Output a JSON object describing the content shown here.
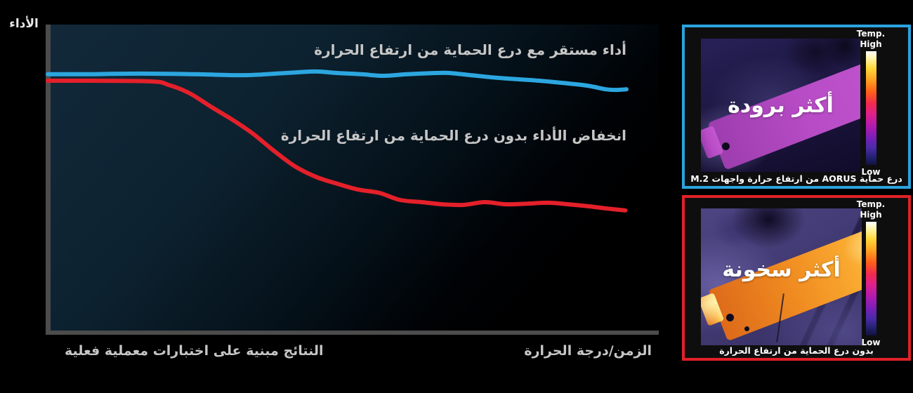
{
  "page": {
    "background": "#000000"
  },
  "chart": {
    "y_axis_label": "الأداء",
    "x_axis_label": "الزمن/درجة الحرارة",
    "footnote": "النتائج مبنية على اختبارات معملية فعلية"
  },
  "chart_data": {
    "type": "line",
    "title": "",
    "xlabel": "الزمن/درجة الحرارة",
    "ylabel": "الأداء",
    "x_range": [
      0,
      100
    ],
    "y_range": [
      0,
      100
    ],
    "grid": false,
    "legend_position": "inline annotations above each line",
    "series": [
      {
        "name": "أداء مستقر مع درع الحماية من ارتفاع الحرارة",
        "color": "#2CA6DF",
        "points": [
          [
            0,
            83.8
          ],
          [
            6.3,
            83.8
          ],
          [
            16,
            84
          ],
          [
            25.7,
            83.8
          ],
          [
            34.2,
            83.5
          ],
          [
            42.7,
            84.4
          ],
          [
            46.4,
            84.7
          ],
          [
            50,
            84.2
          ],
          [
            54.2,
            83.8
          ],
          [
            58,
            83.3
          ],
          [
            62.1,
            83.8
          ],
          [
            67,
            84.2
          ],
          [
            69.4,
            84.2
          ],
          [
            73.1,
            83.5
          ],
          [
            76.7,
            82.8
          ],
          [
            80.9,
            82.2
          ],
          [
            84.9,
            81.7
          ],
          [
            88.8,
            81
          ],
          [
            93.2,
            80.1
          ],
          [
            96.4,
            78.9
          ],
          [
            98.3,
            78.7
          ],
          [
            100,
            78.9
          ]
        ]
      },
      {
        "name": "انخفاض الأداء بدون درع الحماية من ارتفاع الحرارة",
        "color": "#E4202A",
        "points": [
          [
            0,
            81.7
          ],
          [
            17.2,
            81.5
          ],
          [
            20.9,
            80.3
          ],
          [
            24.5,
            77.6
          ],
          [
            28.2,
            73.2
          ],
          [
            31.8,
            69.1
          ],
          [
            35.4,
            64.5
          ],
          [
            39.1,
            58.8
          ],
          [
            42.7,
            53.8
          ],
          [
            46.4,
            50.3
          ],
          [
            50,
            48.1
          ],
          [
            53.6,
            46.2
          ],
          [
            57.3,
            45.1
          ],
          [
            60.9,
            42.8
          ],
          [
            64.6,
            42.1
          ],
          [
            68.2,
            41.4
          ],
          [
            71.8,
            41.2
          ],
          [
            75.5,
            42.1
          ],
          [
            79.1,
            41.4
          ],
          [
            82.8,
            41.6
          ],
          [
            86.4,
            41.9
          ],
          [
            90,
            41.4
          ],
          [
            93.7,
            40.7
          ],
          [
            96.7,
            40
          ],
          [
            99.8,
            39.4
          ]
        ]
      }
    ]
  },
  "panels": {
    "cooler": {
      "border_color": "#2AA4DD",
      "overlay_label": "أكثر برودة",
      "caption": "درع حماية AORUS  من ارتفاع حرارة واجهات M.2",
      "scale": {
        "title": "Temp.",
        "high": "High",
        "low": "Low"
      }
    },
    "hotter": {
      "border_color": "#E02128",
      "overlay_label": "أكثر سخونة",
      "caption": "بدون درع الحماية من ارتفاع الحرارة",
      "scale": {
        "title": "Temp.",
        "high": "High",
        "low": "Low"
      }
    }
  }
}
